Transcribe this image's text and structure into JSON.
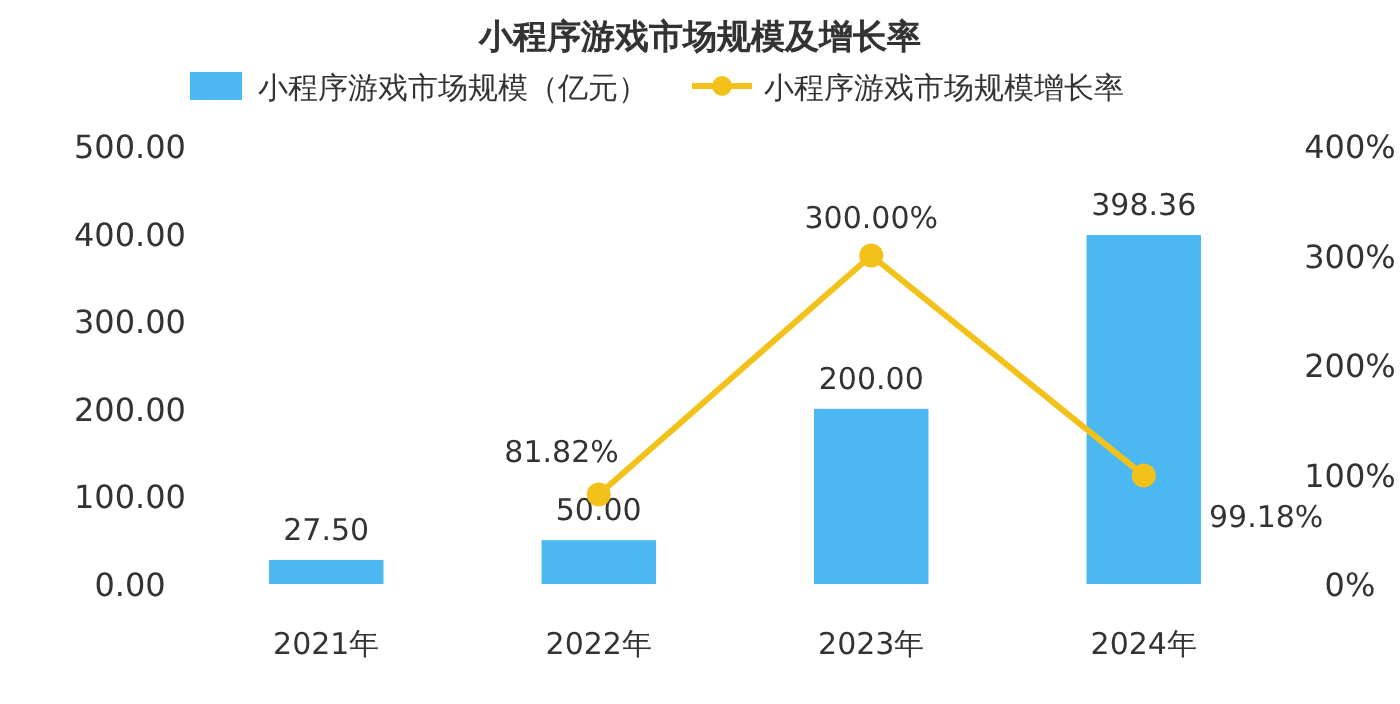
{
  "chart_data": {
    "type": "bar",
    "title": "小程序游戏市场规模及增长率",
    "categories": [
      "2021年",
      "2022年",
      "2023年",
      "2024年"
    ],
    "series": [
      {
        "name": "小程序游戏市场规模（亿元）",
        "color": "#4cb8f2",
        "values": [
          27.5,
          50.0,
          200.0,
          398.36
        ],
        "value_labels": [
          "27.50",
          "50.00",
          "200.00",
          "398.36"
        ]
      },
      {
        "name": "小程序游戏市场规模增长率",
        "type": "line",
        "axis": "y2",
        "color": "#f2c21b",
        "marker": "circle",
        "values": [
          null,
          81.82,
          300.0,
          99.18
        ],
        "value_labels": [
          null,
          "81.82%",
          "300.00%",
          "99.18%"
        ]
      }
    ],
    "ylim": [
      0,
      500
    ],
    "yticks": [
      {
        "value": 0,
        "label": "0.00"
      },
      {
        "value": 100,
        "label": "100.00"
      },
      {
        "value": 200,
        "label": "200.00"
      },
      {
        "value": 300,
        "label": "300.00"
      },
      {
        "value": 400,
        "label": "400.00"
      },
      {
        "value": 500,
        "label": "500.00"
      }
    ],
    "y2lim": [
      0,
      400
    ],
    "y2ticks": [
      {
        "value": 0,
        "label": "0%"
      },
      {
        "value": 100,
        "label": "100%"
      },
      {
        "value": 200,
        "label": "200%"
      },
      {
        "value": 300,
        "label": "300%"
      },
      {
        "value": 400,
        "label": "400%"
      }
    ],
    "legend": "top",
    "grid": false
  }
}
